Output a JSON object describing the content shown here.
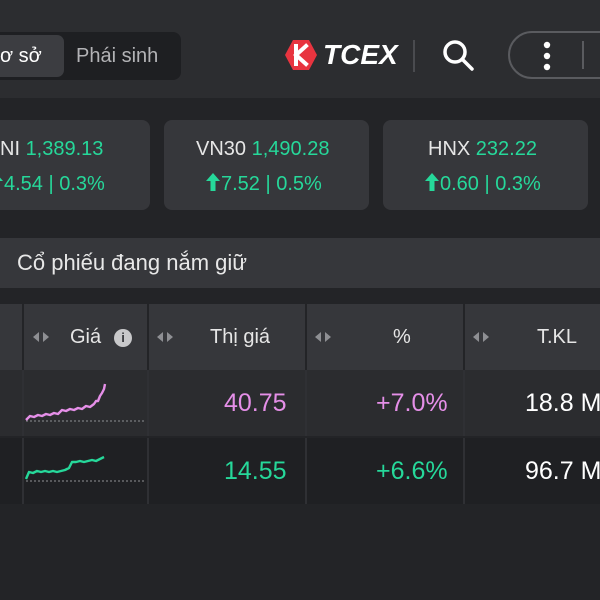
{
  "header": {
    "segment_active": "ơ sở",
    "segment_inactive": "Phái sinh",
    "logo_text": "TCEX"
  },
  "indices": [
    {
      "name": "NI",
      "value": "1,389.13",
      "change": "4.54 | 0.3%"
    },
    {
      "name": "VN30",
      "value": "1,490.28",
      "change": "7.52 | 0.5%"
    },
    {
      "name": "HNX",
      "value": "232.22",
      "change": "0.60 | 0.3%"
    }
  ],
  "section": {
    "title": "Cổ phiếu đang nắm giữ"
  },
  "table": {
    "columns": {
      "price": "Giá",
      "market_price": "Thị giá",
      "percent": "%",
      "volume": "T.KL"
    },
    "rows": [
      {
        "market_price": "40.75",
        "percent": "+7.0%",
        "volume": "18.8 M",
        "color": "#e58fe8"
      },
      {
        "market_price": "14.55",
        "percent": "+6.6%",
        "volume": "96.7 M",
        "color": "#26d89a"
      }
    ]
  },
  "colors": {
    "up": "#26d89a",
    "ceiling": "#e58fe8",
    "brand": "#e8343f"
  }
}
